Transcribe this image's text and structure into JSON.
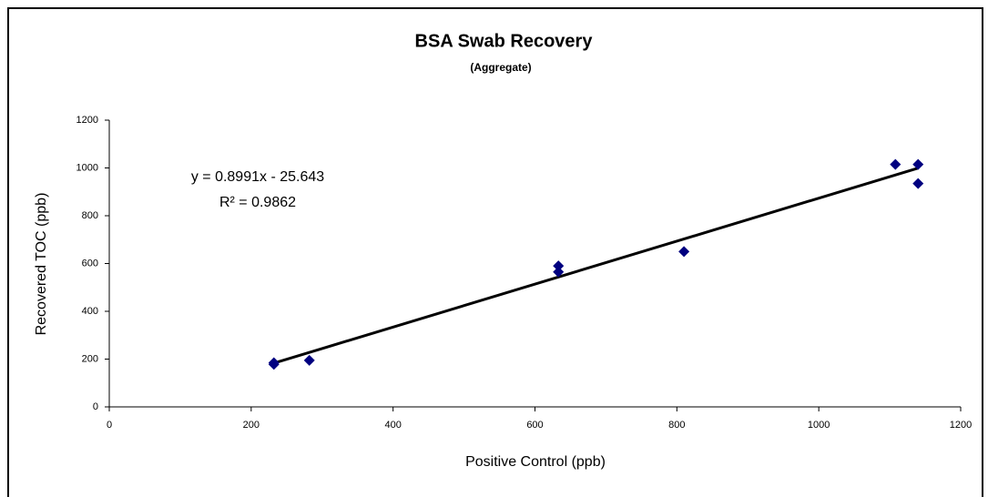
{
  "chart_data": {
    "type": "scatter",
    "title": "BSA Swab Recovery",
    "subtitle": "(Aggregate)",
    "xlabel": "Positive Control (ppb)",
    "ylabel": "Recovered TOC (ppb)",
    "annotations": [
      "y = 0.8991x - 25.643",
      "R² = 0.9862"
    ],
    "trendline": {
      "slope": 0.8991,
      "intercept": -25.643
    },
    "series": [
      {
        "name": "Aggregate",
        "color": "#000080",
        "x": [
          232,
          232,
          282,
          633,
          633,
          810,
          1108,
          1140,
          1140
        ],
        "values": [
          185,
          178,
          195,
          590,
          565,
          650,
          1015,
          1015,
          935
        ]
      }
    ],
    "xlim": [
      0,
      1200
    ],
    "xticks": [
      0,
      200,
      400,
      600,
      800,
      1000,
      1200
    ],
    "ylim": [
      0,
      1200
    ],
    "yticks": [
      0,
      200,
      400,
      600,
      800,
      1000,
      1200
    ],
    "grid": false
  }
}
